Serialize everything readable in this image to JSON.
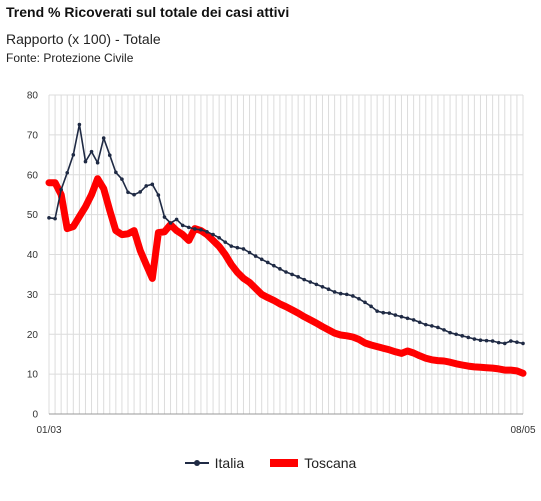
{
  "header": {
    "title": "Trend % Ricoverati sul totale dei casi attivi",
    "subtitle": "Rapporto (x 100) - Totale",
    "source": "Fonte: Protezione Civile"
  },
  "chart_data": {
    "type": "line",
    "x_start_label": "01/03",
    "x_end_label": "08/05",
    "ylim": [
      0,
      80
    ],
    "y_ticks": [
      0,
      10,
      20,
      30,
      40,
      50,
      60,
      70,
      80
    ],
    "grid": true,
    "legend_position": "bottom",
    "colors": {
      "italia": "#1f2a44",
      "toscana": "#ff0000"
    },
    "series": [
      {
        "name": "Italia",
        "values": [
          49.2,
          49.0,
          56.3,
          60.5,
          65.0,
          72.6,
          63.3,
          65.8,
          63.0,
          69.2,
          64.9,
          60.6,
          58.9,
          55.6,
          55.0,
          55.7,
          57.2,
          57.6,
          54.9,
          49.4,
          47.9,
          48.8,
          47.3,
          46.8,
          46.4,
          46.2,
          45.7,
          45.0,
          44.2,
          43.1,
          42.1,
          41.7,
          41.4,
          40.5,
          39.6,
          38.8,
          38.0,
          37.2,
          36.4,
          35.6,
          35.0,
          34.4,
          33.7,
          33.1,
          32.5,
          31.9,
          31.3,
          30.6,
          30.2,
          30.0,
          29.6,
          28.9,
          28.0,
          27.0,
          25.8,
          25.4,
          25.3,
          24.8,
          24.4,
          24.0,
          23.6,
          23.0,
          22.4,
          22.1,
          21.7,
          21.1,
          20.4,
          20.0,
          19.6,
          19.2,
          18.8,
          18.5,
          18.4,
          18.3,
          17.9,
          17.7,
          18.3,
          18.0,
          17.7
        ]
      },
      {
        "name": "Toscana",
        "values": [
          58.0,
          58.0,
          55.0,
          46.5,
          47.0,
          49.5,
          52.0,
          55.0,
          59.0,
          56.5,
          51.0,
          46.0,
          45.0,
          45.2,
          46.0,
          41.0,
          37.5,
          34.0,
          45.5,
          45.7,
          47.5,
          46.0,
          45.0,
          43.5,
          46.5,
          46.0,
          45.0,
          43.5,
          42.0,
          40.0,
          37.5,
          35.5,
          34.0,
          33.0,
          31.5,
          30.0,
          29.2,
          28.5,
          27.6,
          26.9,
          26.1,
          25.3,
          24.4,
          23.6,
          22.8,
          21.9,
          21.1,
          20.3,
          19.8,
          19.6,
          19.3,
          18.7,
          17.8,
          17.3,
          16.9,
          16.5,
          16.1,
          15.6,
          15.2,
          15.8,
          15.3,
          14.6,
          14.0,
          13.6,
          13.4,
          13.3,
          13.0,
          12.6,
          12.3,
          12.0,
          11.8,
          11.7,
          11.6,
          11.5,
          11.3,
          11.0,
          11.0,
          10.8,
          10.2
        ]
      }
    ]
  }
}
